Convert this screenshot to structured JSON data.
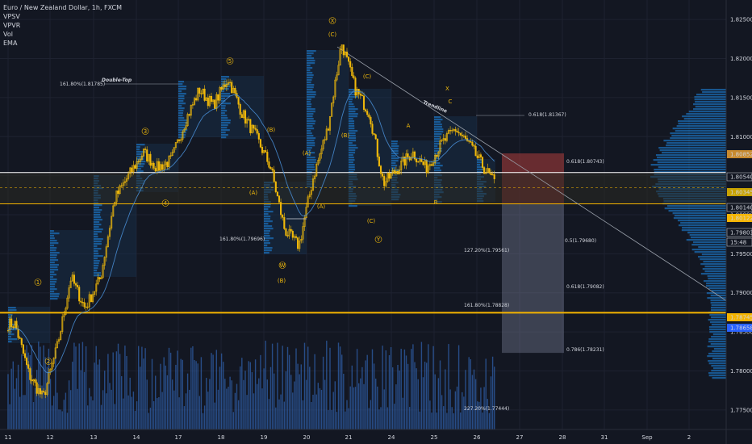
{
  "header": {
    "title": "Euro / New Zealand Dollar, 1h, FXCM",
    "indicators": [
      "VPSV",
      "VPVR",
      "Vol",
      "EMA"
    ]
  },
  "colors": {
    "background": "#131722",
    "candle": "#f0b90b",
    "ema": "#4a90d9",
    "volume": "#2f5fa8",
    "profile": "#1e88e5",
    "level_white": "#ffffff",
    "level_gold": "#f5b400",
    "target_red": "#a23a3a",
    "target_gray": "#8a8fa8"
  },
  "annotations": {
    "double_top": "Double-Top",
    "trendline": "Trendline",
    "big_x": "X",
    "wave_labels": [
      "1",
      "2",
      "3",
      "4",
      "5",
      "X",
      "(C)",
      "(B)",
      "(A)",
      "(A)",
      "(B)",
      "(C)",
      "W",
      "(B)",
      "(A)",
      "(C)",
      "Y",
      "A",
      "B",
      "C"
    ],
    "fib_labels": [
      "161.80%(1.81785)",
      "161.80%(1.79696)",
      "0.618(1.81367)",
      "0.618(1.80743)",
      "0.5(1.79680)",
      "127.20%(1.79561)",
      "0.618(1.79082)",
      "161.80%(1.78828)",
      "0.786(1.78231)",
      "227.20%(1.77444)"
    ]
  },
  "price_tags": [
    {
      "text": "1.80852",
      "color": "#c88a2e"
    },
    {
      "text": "1.80540",
      "color": "#131722"
    },
    {
      "text": "1.80345",
      "color": "#c8a200"
    },
    {
      "text": "1.80140",
      "color": "#131722"
    },
    {
      "text": "1.80122",
      "color": "#f5b400"
    },
    {
      "text": "1.79803",
      "color": "#131722"
    },
    {
      "text": "15:48",
      "color": "#131722"
    },
    {
      "text": "1.78745",
      "color": "#f5b400"
    },
    {
      "text": "1.78658",
      "color": "#2962ff"
    }
  ],
  "chart_data": {
    "type": "candlestick",
    "title": "Euro / New Zealand Dollar, 1h, FXCM",
    "y_ticks": [
      "1.82500",
      "1.82000",
      "1.81500",
      "1.81000",
      "1.80500",
      "1.80000",
      "1.79500",
      "1.79000",
      "1.78500",
      "1.78000",
      "1.77500"
    ],
    "x_ticks": [
      "11",
      "12",
      "13",
      "14",
      "17",
      "18",
      "19",
      "20",
      "21",
      "24",
      "25",
      "26",
      "27",
      "28",
      "31",
      "Sep",
      "2"
    ],
    "ylim": [
      1.7725,
      1.8275
    ],
    "key_levels": [
      {
        "price": 1.8054,
        "style": "white"
      },
      {
        "price": 1.8014,
        "style": "gold"
      },
      {
        "price": 1.78745,
        "style": "gold-thick"
      },
      {
        "price": 1.80345,
        "style": "dashed"
      }
    ],
    "price_path": [
      {
        "x": "11",
        "close": 1.786
      },
      {
        "x": "11",
        "close": 1.7795
      },
      {
        "x": "11",
        "close": 1.7765
      },
      {
        "x": "12",
        "close": 1.783
      },
      {
        "x": "12",
        "close": 1.792
      },
      {
        "x": "12",
        "close": 1.788
      },
      {
        "x": "13",
        "close": 1.792
      },
      {
        "x": "13",
        "close": 1.802
      },
      {
        "x": "13",
        "close": 1.805
      },
      {
        "x": "14",
        "close": 1.808
      },
      {
        "x": "14",
        "close": 1.806
      },
      {
        "x": "14",
        "close": 1.807
      },
      {
        "x": "17",
        "close": 1.812
      },
      {
        "x": "17",
        "close": 1.816
      },
      {
        "x": "17",
        "close": 1.814
      },
      {
        "x": "18",
        "close": 1.8175
      },
      {
        "x": "18",
        "close": 1.813
      },
      {
        "x": "18",
        "close": 1.81
      },
      {
        "x": "19",
        "close": 1.806
      },
      {
        "x": "19",
        "close": 1.798
      },
      {
        "x": "19",
        "close": 1.796
      },
      {
        "x": "20",
        "close": 1.805
      },
      {
        "x": "20",
        "close": 1.811
      },
      {
        "x": "20",
        "close": 1.822
      },
      {
        "x": "21",
        "close": 1.816
      },
      {
        "x": "21",
        "close": 1.813
      },
      {
        "x": "21",
        "close": 1.804
      },
      {
        "x": "24",
        "close": 1.806
      },
      {
        "x": "24",
        "close": 1.808
      },
      {
        "x": "24",
        "close": 1.806
      },
      {
        "x": "25",
        "close": 1.809
      },
      {
        "x": "25",
        "close": 1.811
      },
      {
        "x": "25",
        "close": 1.809
      },
      {
        "x": "26",
        "close": 1.806
      },
      {
        "x": "26",
        "close": 1.8035
      },
      {
        "x": "26",
        "close": 1.798
      }
    ]
  }
}
